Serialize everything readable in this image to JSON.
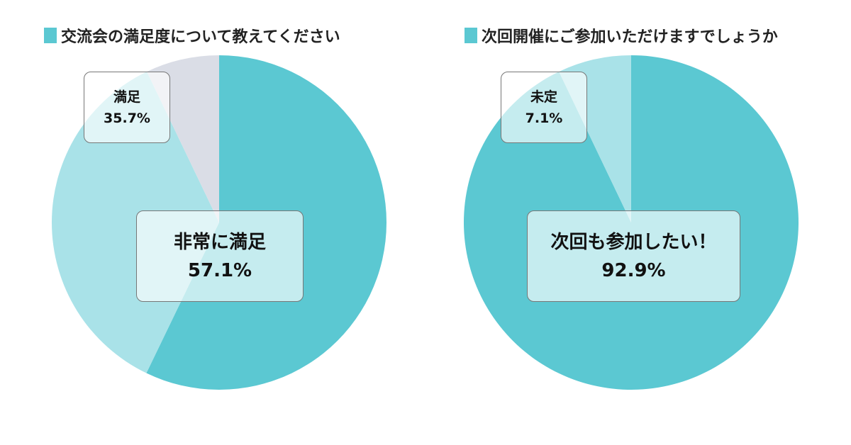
{
  "colors": {
    "primary": "#5bc8d2",
    "secondary": "#a9e2e8",
    "tertiary": "#dadde6"
  },
  "chart_data": [
    {
      "type": "pie",
      "title": "交流会の満足度について教えてください",
      "slices": [
        {
          "label": "非常に満足",
          "value": 57.1,
          "display": "57.1%",
          "color": "#5bc8d2"
        },
        {
          "label": "満足",
          "value": 35.7,
          "display": "35.7%",
          "color": "#a9e2e8"
        },
        {
          "label": "",
          "value": 7.1,
          "color": "#dadde6"
        }
      ]
    },
    {
      "type": "pie",
      "title": "次回開催にご参加いただけますでしょうか",
      "slices": [
        {
          "label": "次回も参加したい！",
          "value": 92.9,
          "display": "92.9%",
          "color": "#5bc8d2"
        },
        {
          "label": "未定",
          "value": 7.1,
          "display": "7.1%",
          "color": "#a9e2e8"
        }
      ]
    }
  ]
}
